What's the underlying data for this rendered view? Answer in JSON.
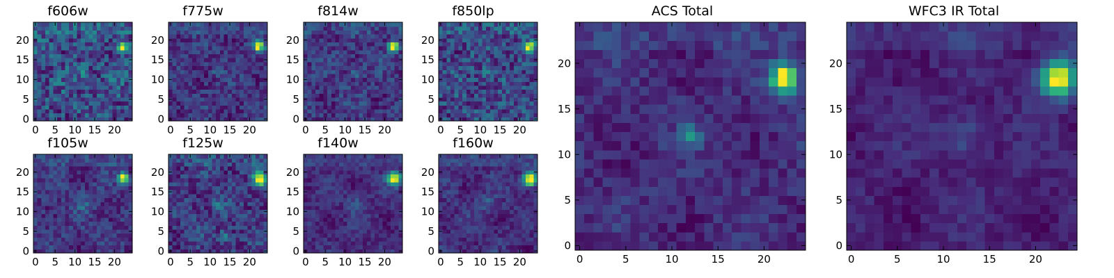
{
  "figure": {
    "colormap": "viridis",
    "colormap_stops": [
      "#440154",
      "#472d7b",
      "#3b528b",
      "#2c728e",
      "#21918c",
      "#28ae80",
      "#5ec962",
      "#addc30",
      "#fde725"
    ]
  },
  "chart_data": [
    {
      "type": "heatmap",
      "title": "f606w",
      "size": [
        25,
        25
      ],
      "xlim": [
        -0.5,
        24.5
      ],
      "ylim": [
        -0.5,
        24.5
      ],
      "xticks": [
        0,
        5,
        10,
        15,
        20
      ],
      "yticks": [
        0,
        5,
        10,
        15,
        20
      ],
      "background": 0.3,
      "noise": 0.17,
      "seed": 11,
      "sources": [
        {
          "x": 22,
          "y": 18.3,
          "amp": 0.75,
          "sigma": 0.85
        },
        {
          "x": 12,
          "y": 12,
          "amp": 0.18,
          "sigma": 0.9
        }
      ]
    },
    {
      "type": "heatmap",
      "title": "f775w",
      "size": [
        25,
        25
      ],
      "xlim": [
        -0.5,
        24.5
      ],
      "ylim": [
        -0.5,
        24.5
      ],
      "xticks": [
        0,
        5,
        10,
        15,
        20
      ],
      "yticks": [
        0,
        5,
        10,
        15,
        20
      ],
      "background": 0.24,
      "noise": 0.11,
      "seed": 23,
      "sources": [
        {
          "x": 22.3,
          "y": 18.5,
          "amp": 0.78,
          "sigma": 0.9
        },
        {
          "x": 12,
          "y": 12,
          "amp": 0.18,
          "sigma": 0.8
        }
      ]
    },
    {
      "type": "heatmap",
      "title": "f814w",
      "size": [
        25,
        25
      ],
      "xlim": [
        -0.5,
        24.5
      ],
      "ylim": [
        -0.5,
        24.5
      ],
      "xticks": [
        0,
        5,
        10,
        15,
        20
      ],
      "yticks": [
        0,
        5,
        10,
        15,
        20
      ],
      "background": 0.2,
      "noise": 0.1,
      "seed": 37,
      "sources": [
        {
          "x": 22.2,
          "y": 18.4,
          "amp": 0.82,
          "sigma": 0.9
        },
        {
          "x": 13,
          "y": 12,
          "amp": 0.15,
          "sigma": 1.0
        }
      ]
    },
    {
      "type": "heatmap",
      "title": "f850lp",
      "size": [
        25,
        25
      ],
      "xlim": [
        -0.5,
        24.5
      ],
      "ylim": [
        -0.5,
        24.5
      ],
      "xticks": [
        0,
        5,
        10,
        15,
        20
      ],
      "yticks": [
        0,
        5,
        10,
        15,
        20
      ],
      "background": 0.28,
      "noise": 0.16,
      "seed": 41,
      "sources": [
        {
          "x": 22.2,
          "y": 18.4,
          "amp": 0.72,
          "sigma": 0.85
        },
        {
          "x": 12,
          "y": 12,
          "amp": 0.15,
          "sigma": 0.9
        }
      ]
    },
    {
      "type": "heatmap",
      "title": "f105w",
      "size": [
        25,
        25
      ],
      "xlim": [
        -0.5,
        24.5
      ],
      "ylim": [
        -0.5,
        24.5
      ],
      "xticks": [
        0,
        5,
        10,
        15,
        20
      ],
      "yticks": [
        0,
        5,
        10,
        15,
        20
      ],
      "background": 0.2,
      "noise": 0.09,
      "seed": 53,
      "sources": [
        {
          "x": 22.3,
          "y": 18.6,
          "amp": 0.8,
          "sigma": 0.9
        },
        {
          "x": 12,
          "y": 12,
          "amp": 0.12,
          "sigma": 1.4
        }
      ]
    },
    {
      "type": "heatmap",
      "title": "f125w",
      "size": [
        25,
        25
      ],
      "xlim": [
        -0.5,
        24.5
      ],
      "ylim": [
        -0.5,
        24.5
      ],
      "xticks": [
        0,
        5,
        10,
        15,
        20
      ],
      "yticks": [
        0,
        5,
        10,
        15,
        20
      ],
      "background": 0.26,
      "noise": 0.11,
      "seed": 67,
      "sources": [
        {
          "x": 22.6,
          "y": 18.3,
          "amp": 0.78,
          "sigma": 1.1
        },
        {
          "x": 14,
          "y": 4,
          "amp": 0.18,
          "sigma": 1.0
        },
        {
          "x": 12,
          "y": 12,
          "amp": 0.12,
          "sigma": 1.4
        }
      ]
    },
    {
      "type": "heatmap",
      "title": "f140w",
      "size": [
        25,
        25
      ],
      "xlim": [
        -0.5,
        24.5
      ],
      "ylim": [
        -0.5,
        24.5
      ],
      "xticks": [
        0,
        5,
        10,
        15,
        20
      ],
      "yticks": [
        0,
        5,
        10,
        15,
        20
      ],
      "background": 0.24,
      "noise": 0.07,
      "seed": 71,
      "sources": [
        {
          "x": 22.4,
          "y": 18.4,
          "amp": 0.75,
          "sigma": 1.2
        },
        {
          "x": 13,
          "y": 12,
          "amp": 0.14,
          "sigma": 1.6
        }
      ]
    },
    {
      "type": "heatmap",
      "title": "f160w",
      "size": [
        25,
        25
      ],
      "xlim": [
        -0.5,
        24.5
      ],
      "ylim": [
        -0.5,
        24.5
      ],
      "xticks": [
        0,
        5,
        10,
        15,
        20
      ],
      "yticks": [
        0,
        5,
        10,
        15,
        20
      ],
      "background": 0.24,
      "noise": 0.07,
      "seed": 83,
      "sources": [
        {
          "x": 22.6,
          "y": 18.3,
          "amp": 0.78,
          "sigma": 1.2
        },
        {
          "x": 12,
          "y": 12,
          "amp": 0.12,
          "sigma": 1.6
        }
      ]
    },
    {
      "type": "heatmap",
      "title": "ACS Total",
      "size": [
        25,
        25
      ],
      "xlim": [
        -0.5,
        24.5
      ],
      "ylim": [
        -0.5,
        24.5
      ],
      "xticks": [
        0,
        5,
        10,
        15,
        20
      ],
      "yticks": [
        0,
        5,
        10,
        15,
        20
      ],
      "background": 0.2,
      "noise": 0.07,
      "seed": 97,
      "sources": [
        {
          "x": 22.2,
          "y": 18.4,
          "amp": 0.8,
          "sigma": 1.05
        },
        {
          "x": 12,
          "y": 12,
          "amp": 0.25,
          "sigma": 0.9
        }
      ]
    },
    {
      "type": "heatmap",
      "title": "WFC3 IR Total",
      "size": [
        25,
        25
      ],
      "xlim": [
        -0.5,
        24.5
      ],
      "ylim": [
        -0.5,
        24.5
      ],
      "xticks": [
        0,
        5,
        10,
        15,
        20
      ],
      "yticks": [
        0,
        5,
        10,
        15,
        20
      ],
      "background": 0.18,
      "noise": 0.05,
      "seed": 109,
      "sources": [
        {
          "x": 22.4,
          "y": 18.4,
          "amp": 0.8,
          "sigma": 1.35
        },
        {
          "x": 12,
          "y": 12,
          "amp": 0.14,
          "sigma": 1.8
        }
      ]
    }
  ]
}
